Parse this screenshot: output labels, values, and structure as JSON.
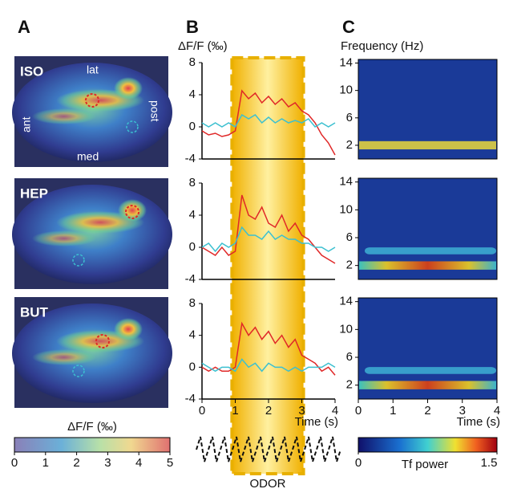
{
  "panel_labels": [
    "A",
    "B",
    "C"
  ],
  "panel_a": {
    "rows": [
      {
        "label": "ISO"
      },
      {
        "label": "HEP"
      },
      {
        "label": "BUT"
      }
    ],
    "orientation": {
      "lat": "lat",
      "post": "post",
      "ant": "ant",
      "med": "med"
    },
    "colorbar": {
      "title": "ΔF/F (‰)",
      "ticks": [
        0,
        1,
        2,
        3,
        4,
        5
      ]
    }
  },
  "panel_b": {
    "y_label": "ΔF/F (‰)",
    "x_label": "Time (s)",
    "odor_label": "ODOR",
    "xlim": [
      0,
      4
    ],
    "xticks": [
      0,
      1,
      2,
      3,
      4
    ],
    "ylim": [
      -4,
      8
    ],
    "yticks": [
      -4,
      0,
      4,
      8
    ],
    "odor_window": [
      0.9,
      3.05
    ],
    "x": [
      0,
      0.2,
      0.4,
      0.6,
      0.8,
      1,
      1.2,
      1.4,
      1.6,
      1.8,
      2,
      2.2,
      2.4,
      2.6,
      2.8,
      3,
      3.2,
      3.4,
      3.6,
      3.8,
      4
    ],
    "plots": [
      {
        "series": [
          {
            "color": "#e02828",
            "values": [
              -0.5,
              -1,
              -0.8,
              -1.2,
              -1,
              -0.5,
              4.5,
              3.5,
              4.2,
              3,
              3.8,
              2.8,
              3.5,
              2.5,
              3,
              2,
              1.5,
              0.5,
              -1,
              -2,
              -3.5
            ]
          },
          {
            "color": "#3cc0d0",
            "values": [
              0.5,
              0,
              0.5,
              0,
              0.5,
              0,
              1.5,
              1,
              1.5,
              0.5,
              1.2,
              0.5,
              1,
              0.5,
              0.8,
              0.5,
              1,
              0,
              0.5,
              0,
              0.5
            ]
          }
        ]
      },
      {
        "series": [
          {
            "color": "#e02828",
            "values": [
              0,
              -0.5,
              -1,
              0,
              -1,
              -0.5,
              6.5,
              4,
              3.5,
              5,
              3,
              2.5,
              4,
              2,
              3,
              1.5,
              1,
              0,
              -1,
              -1.5,
              -2
            ]
          },
          {
            "color": "#3cc0d0",
            "values": [
              0,
              0.5,
              -0.5,
              0.5,
              0,
              0.5,
              2.5,
              1.5,
              1.5,
              1,
              2,
              1,
              1.5,
              1,
              1,
              0.5,
              0.5,
              0,
              0,
              -0.5,
              0
            ]
          }
        ]
      },
      {
        "series": [
          {
            "color": "#e02828",
            "values": [
              0,
              -0.5,
              0,
              -0.5,
              -0.5,
              0,
              5.5,
              4,
              5,
              3.5,
              4.5,
              3,
              4,
              2.5,
              3.5,
              1.5,
              1,
              0.5,
              -0.5,
              0,
              -1
            ]
          },
          {
            "color": "#3cc0d0",
            "values": [
              0.5,
              0,
              -0.5,
              0,
              0,
              -0.5,
              1,
              0,
              0.5,
              -0.5,
              0.5,
              0,
              0,
              -0.5,
              0,
              -0.5,
              0,
              0,
              0,
              0.5,
              0
            ]
          }
        ]
      }
    ]
  },
  "panel_c": {
    "y_label": "Frequency (Hz)",
    "x_label": "Time (s)",
    "xlim": [
      0,
      4
    ],
    "xticks": [
      0,
      1,
      2,
      3,
      4
    ],
    "ylim": [
      0,
      15
    ],
    "yticks": [
      2,
      6,
      10,
      14
    ],
    "colorbar": {
      "title": "Tf power",
      "ticks": [
        0,
        1.5
      ]
    }
  }
}
